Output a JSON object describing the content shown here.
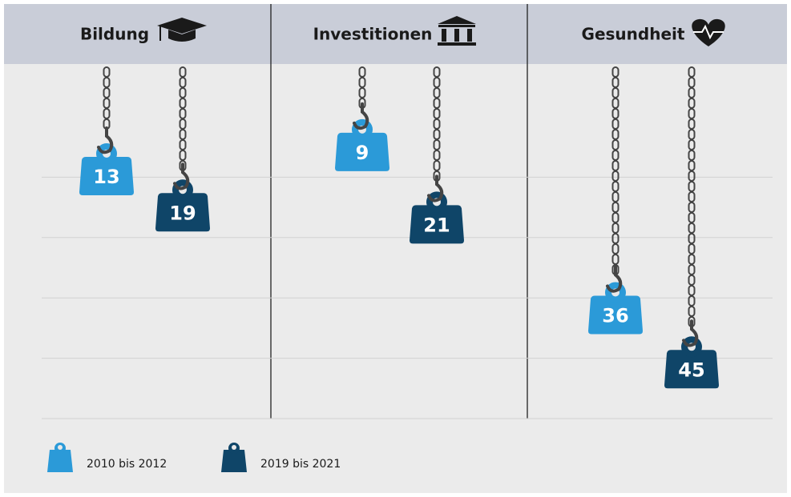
{
  "chart_data": {
    "type": "hanging-weight",
    "categories": [
      "Bildung",
      "Investitionen",
      "Gesundheit"
    ],
    "series": [
      {
        "name": "2010 bis 2012",
        "color": "#2b9ad8",
        "values": [
          13,
          9,
          36
        ]
      },
      {
        "name": "2019 bis 2021",
        "color": "#0f4568",
        "values": [
          19,
          21,
          45
        ]
      }
    ],
    "ylim": [
      0,
      50
    ],
    "yticks": [
      10,
      20,
      30,
      40,
      50
    ],
    "grid": true
  }
}
